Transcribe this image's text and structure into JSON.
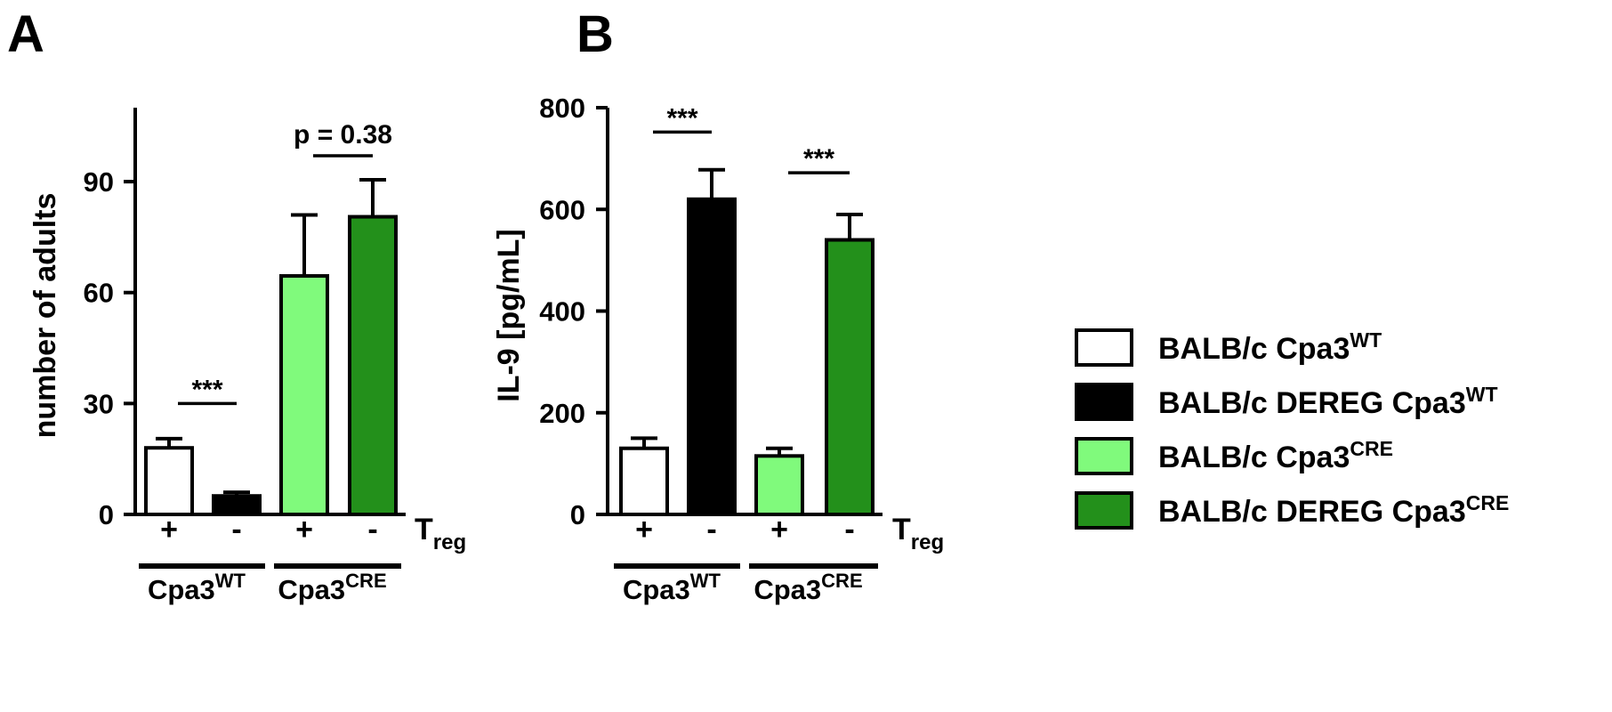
{
  "panels": [
    {
      "letter": "A"
    },
    {
      "letter": "B"
    }
  ],
  "treg_label": {
    "base": "T",
    "sub": "reg"
  },
  "legend": {
    "items": [
      {
        "base": "BALB/c Cpa3",
        "sup": "WT",
        "color": "#ffffff"
      },
      {
        "base": "BALB/c DEREG Cpa3",
        "sup": "WT",
        "color": "#000000"
      },
      {
        "base": "BALB/c Cpa3",
        "sup": "CRE",
        "color": "#80fa7c"
      },
      {
        "base": "BALB/c DEREG Cpa3",
        "sup": "CRE",
        "color": "#23901b"
      }
    ]
  },
  "chart_data": [
    {
      "type": "bar",
      "panel": "A",
      "ylabel": "number of adults",
      "ylim": [
        0,
        110
      ],
      "yticks": [
        0,
        30,
        60,
        90
      ],
      "categories": [
        "+",
        "-",
        "+",
        "-"
      ],
      "values": [
        18,
        5,
        64.5,
        80.5
      ],
      "errors": [
        2.5,
        1,
        16.5,
        10
      ],
      "colors": [
        "#ffffff",
        "#000000",
        "#80fa7c",
        "#23901b"
      ],
      "groups": [
        {
          "base": "Cpa3",
          "sup": "WT"
        },
        {
          "base": "Cpa3",
          "sup": "CRE"
        }
      ],
      "significance": [
        {
          "bars": [
            0,
            1
          ],
          "label": "***",
          "y": 30
        },
        {
          "bars": [
            2,
            3
          ],
          "label": "p = 0.38",
          "y": 97
        }
      ]
    },
    {
      "type": "bar",
      "panel": "B",
      "ylabel": "IL-9 [pg/mL]",
      "ylim": [
        0,
        800
      ],
      "yticks": [
        0,
        200,
        400,
        600,
        800
      ],
      "categories": [
        "+",
        "-",
        "+",
        "-"
      ],
      "values": [
        130,
        620,
        115,
        540
      ],
      "errors": [
        20,
        58,
        15,
        50
      ],
      "colors": [
        "#ffffff",
        "#000000",
        "#80fa7c",
        "#23901b"
      ],
      "groups": [
        {
          "base": "Cpa3",
          "sup": "WT"
        },
        {
          "base": "Cpa3",
          "sup": "CRE"
        }
      ],
      "significance": [
        {
          "bars": [
            0,
            1
          ],
          "label": "***",
          "y": 752
        },
        {
          "bars": [
            2,
            3
          ],
          "label": "***",
          "y": 672
        }
      ]
    }
  ]
}
